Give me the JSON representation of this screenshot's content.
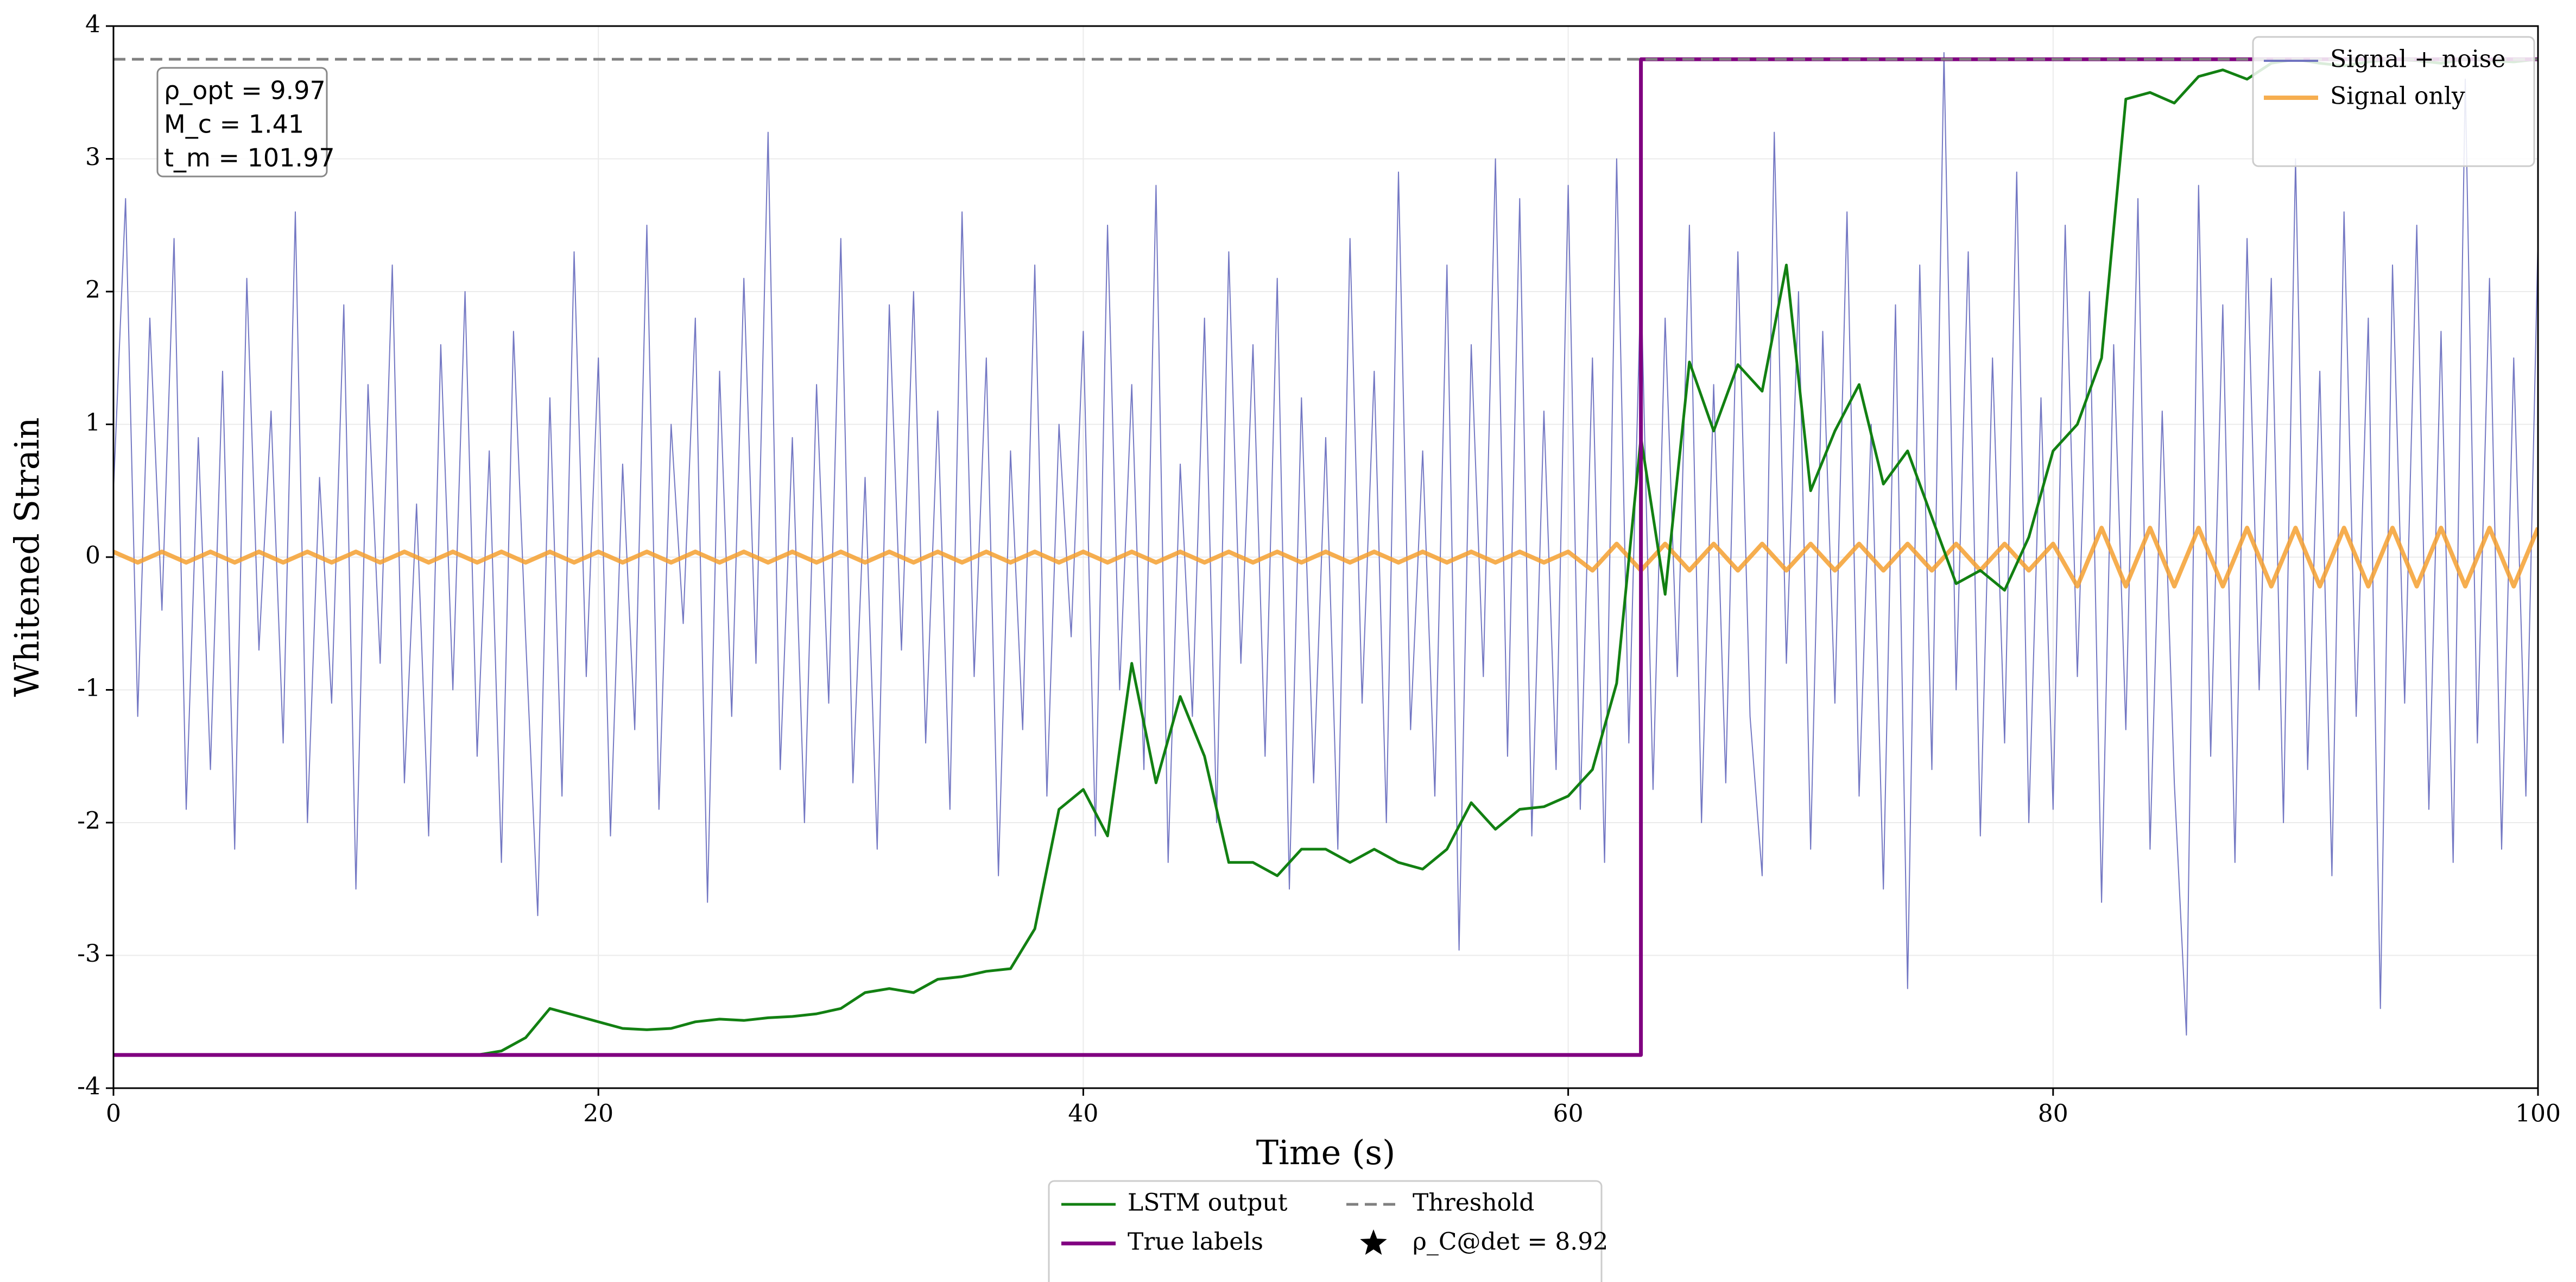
{
  "chart_data": {
    "type": "line",
    "xlabel": "Time (s)",
    "ylabel": "Whitened Strain",
    "xlim": [
      0,
      100
    ],
    "ylim": [
      -4,
      4
    ],
    "xticks": [
      0,
      20,
      40,
      60,
      80,
      100
    ],
    "yticks": [
      -4,
      -3,
      -2,
      -1,
      0,
      1,
      2,
      3,
      4
    ],
    "grid": true,
    "annotations": [
      "ρ_opt = 9.97",
      "M_c = 1.41",
      "t_m = 101.97"
    ],
    "marker_legend": {
      "label": "ρ_C@det = 8.92",
      "marker": "star",
      "color": "#000000",
      "legend": "below"
    },
    "series": [
      {
        "name": "Signal + noise",
        "color": "#5b5fb8",
        "width": 2,
        "opacity": 0.85,
        "legend": "upper right",
        "x": [
          0,
          0.5,
          1,
          1.5,
          2,
          2.5,
          3,
          3.5,
          4,
          4.5,
          5,
          5.5,
          6,
          6.5,
          7,
          7.5,
          8,
          8.5,
          9,
          9.5,
          10,
          10.5,
          11,
          11.5,
          12,
          12.5,
          13,
          13.5,
          14,
          14.5,
          15,
          15.5,
          16,
          16.5,
          17,
          17.5,
          18,
          18.5,
          19,
          19.5,
          20,
          20.5,
          21,
          21.5,
          22,
          22.5,
          23,
          23.5,
          24,
          24.5,
          25,
          25.5,
          26,
          26.5,
          27,
          27.5,
          28,
          28.5,
          29,
          29.5,
          30,
          30.5,
          31,
          31.5,
          32,
          32.5,
          33,
          33.5,
          34,
          34.5,
          35,
          35.5,
          36,
          36.5,
          37,
          37.5,
          38,
          38.5,
          39,
          39.5,
          40,
          40.5,
          41,
          41.5,
          42,
          42.5,
          43,
          43.5,
          44,
          44.5,
          45,
          45.5,
          46,
          46.5,
          47,
          47.5,
          48,
          48.5,
          49,
          49.5,
          50,
          50.5,
          51,
          51.5,
          52,
          52.5,
          53,
          53.5,
          54,
          54.5,
          55,
          55.5,
          56,
          56.5,
          57,
          57.5,
          58,
          58.5,
          59,
          59.5,
          60,
          60.5,
          61,
          61.5,
          62,
          62.5,
          63,
          63.5,
          64,
          64.5,
          65,
          65.5,
          66,
          66.5,
          67,
          67.5,
          68,
          68.5,
          69,
          69.5,
          70,
          70.5,
          71,
          71.5,
          72,
          72.5,
          73,
          73.5,
          74,
          74.5,
          75,
          75.5,
          76,
          76.5,
          77,
          77.5,
          78,
          78.5,
          79,
          79.5,
          80,
          80.5,
          81,
          81.5,
          82,
          82.5,
          83,
          83.5,
          84,
          84.5,
          85,
          85.5,
          86,
          86.5,
          87,
          87.5,
          88,
          88.5,
          89,
          89.5,
          90,
          90.5,
          91,
          91.5,
          92,
          92.5,
          93,
          93.5,
          94,
          94.5,
          95,
          95.5,
          96,
          96.5,
          97,
          97.5,
          98,
          98.5,
          99,
          99.5,
          100
        ],
        "values": [
          0.5,
          2.7,
          -1.2,
          1.8,
          -0.4,
          2.4,
          -1.9,
          0.9,
          -1.6,
          1.4,
          -2.2,
          2.1,
          -0.7,
          1.1,
          -1.4,
          2.6,
          -2.0,
          0.6,
          -1.1,
          1.9,
          -2.5,
          1.3,
          -0.8,
          2.2,
          -1.7,
          0.4,
          -2.1,
          1.6,
          -1.0,
          2.0,
          -1.5,
          0.8,
          -2.3,
          1.7,
          -0.6,
          -2.7,
          1.2,
          -1.8,
          2.3,
          -0.9,
          1.5,
          -2.1,
          0.7,
          -1.3,
          2.5,
          -1.9,
          1.0,
          -0.5,
          1.8,
          -2.6,
          1.4,
          -1.2,
          2.1,
          -0.8,
          3.2,
          -1.6,
          0.9,
          -2.0,
          1.3,
          -1.1,
          2.4,
          -1.7,
          0.6,
          -2.2,
          1.9,
          -0.7,
          2.0,
          -1.4,
          1.1,
          -1.9,
          2.6,
          -0.9,
          1.5,
          -2.4,
          0.8,
          -1.3,
          2.2,
          -1.8,
          1.0,
          -0.6,
          1.7,
          -2.1,
          2.5,
          -1.0,
          1.3,
          -1.6,
          2.8,
          -2.3,
          0.7,
          -1.2,
          1.8,
          -2.0,
          2.3,
          -0.8,
          1.6,
          -1.5,
          2.1,
          -2.5,
          1.2,
          -1.7,
          0.9,
          -2.2,
          2.4,
          -1.1,
          1.4,
          -2.0,
          2.9,
          -1.3,
          0.8,
          -1.8,
          2.2,
          -2.96,
          1.6,
          -0.9,
          3.0,
          -1.5,
          2.7,
          -2.1,
          1.1,
          -1.6,
          2.8,
          -1.9,
          1.5,
          -2.3,
          3.0,
          -1.4,
          2.1,
          -1.75,
          1.8,
          -0.9,
          2.5,
          -2.0,
          1.3,
          -1.7,
          2.3,
          -1.2,
          -2.4,
          3.2,
          -0.8,
          2.0,
          -2.2,
          1.7,
          -1.1,
          2.6,
          -1.8,
          1.0,
          -2.5,
          1.9,
          -3.25,
          2.2,
          -1.6,
          3.8,
          -1.0,
          2.3,
          -2.1,
          1.5,
          -1.4,
          2.9,
          -2.0,
          1.2,
          -1.9,
          2.5,
          -0.9,
          2.0,
          -2.6,
          1.6,
          -1.3,
          2.7,
          -2.2,
          1.1,
          -1.7,
          -3.6,
          2.8,
          -1.5,
          1.9,
          -2.3,
          2.4,
          -1.0,
          2.1,
          -2.0,
          3.0,
          -1.6,
          1.4,
          -2.4,
          2.6,
          -1.2,
          1.8,
          -3.4,
          2.2,
          -1.1,
          2.5,
          -1.9,
          1.7,
          -2.3,
          3.6,
          -1.4,
          2.1,
          -2.2,
          1.5,
          -1.8,
          2.4
        ]
      },
      {
        "name": "Signal only",
        "color": "#f5a030",
        "width": 8,
        "opacity": 0.85,
        "legend": "upper right",
        "x": [
          0,
          1,
          2,
          3,
          4,
          5,
          6,
          7,
          8,
          9,
          10,
          11,
          12,
          13,
          14,
          15,
          16,
          17,
          18,
          19,
          20,
          21,
          22,
          23,
          24,
          25,
          26,
          27,
          28,
          29,
          30,
          31,
          32,
          33,
          34,
          35,
          36,
          37,
          38,
          39,
          40,
          41,
          42,
          43,
          44,
          45,
          46,
          47,
          48,
          49,
          50,
          51,
          52,
          53,
          54,
          55,
          56,
          57,
          58,
          59,
          60,
          61,
          62,
          63,
          64,
          65,
          66,
          67,
          68,
          69,
          70,
          71,
          72,
          73,
          74,
          75,
          76,
          77,
          78,
          79,
          80,
          81,
          82,
          83,
          84,
          85,
          86,
          87,
          88,
          89,
          90,
          91,
          92,
          93,
          94,
          95,
          96,
          97,
          98,
          99,
          100
        ],
        "values": [
          0.04,
          -0.04,
          0.04,
          -0.04,
          0.04,
          -0.04,
          0.04,
          -0.04,
          0.04,
          -0.04,
          0.04,
          -0.04,
          0.04,
          -0.04,
          0.04,
          -0.04,
          0.04,
          -0.04,
          0.04,
          -0.04,
          0.04,
          -0.04,
          0.04,
          -0.04,
          0.04,
          -0.04,
          0.04,
          -0.04,
          0.04,
          -0.04,
          0.04,
          -0.04,
          0.04,
          -0.04,
          0.04,
          -0.04,
          0.04,
          -0.04,
          0.04,
          -0.04,
          0.04,
          -0.04,
          0.04,
          -0.04,
          0.04,
          -0.04,
          0.04,
          -0.04,
          0.04,
          -0.04,
          0.04,
          -0.04,
          0.04,
          -0.04,
          0.04,
          -0.04,
          0.04,
          -0.04,
          0.04,
          -0.04,
          0.04,
          -0.1,
          0.1,
          -0.1,
          0.1,
          -0.1,
          0.1,
          -0.1,
          0.1,
          -0.1,
          0.1,
          -0.1,
          0.1,
          -0.1,
          0.1,
          -0.1,
          0.1,
          -0.1,
          0.1,
          -0.1,
          0.1,
          -0.22,
          0.22,
          -0.22,
          0.22,
          -0.22,
          0.22,
          -0.22,
          0.22,
          -0.22,
          0.22,
          -0.22,
          0.22,
          -0.22,
          0.22,
          -0.22,
          0.22,
          -0.22,
          0.22,
          -0.22,
          0.22
        ]
      },
      {
        "name": "LSTM output",
        "color": "#128012",
        "width": 5,
        "opacity": 1,
        "legend": "below",
        "x": [
          0,
          1,
          2,
          3,
          4,
          5,
          6,
          7,
          8,
          9,
          10,
          11,
          12,
          13,
          14,
          15,
          16,
          17,
          18,
          19,
          20,
          21,
          22,
          23,
          24,
          25,
          26,
          27,
          28,
          29,
          30,
          31,
          32,
          33,
          34,
          35,
          36,
          37,
          38,
          39,
          40,
          41,
          42,
          43,
          44,
          45,
          46,
          47,
          48,
          49,
          50,
          51,
          52,
          53,
          54,
          55,
          56,
          57,
          58,
          59,
          60,
          61,
          62,
          63,
          64,
          65,
          66,
          67,
          68,
          69,
          70,
          71,
          72,
          73,
          74,
          75,
          76,
          77,
          78,
          79,
          80,
          81,
          82,
          83,
          84,
          85,
          86,
          87,
          88,
          89,
          90,
          91,
          92,
          93,
          94,
          95,
          96,
          97,
          98,
          99,
          100
        ],
        "values": [
          -3.75,
          -3.75,
          -3.75,
          -3.75,
          -3.75,
          -3.75,
          -3.75,
          -3.75,
          -3.75,
          -3.75,
          -3.75,
          -3.75,
          -3.75,
          -3.75,
          -3.75,
          -3.75,
          -3.72,
          -3.62,
          -3.4,
          -3.45,
          -3.5,
          -3.55,
          -3.56,
          -3.55,
          -3.5,
          -3.48,
          -3.49,
          -3.47,
          -3.46,
          -3.44,
          -3.4,
          -3.28,
          -3.25,
          -3.28,
          -3.18,
          -3.16,
          -3.12,
          -3.1,
          -2.8,
          -1.9,
          -1.75,
          -2.1,
          -0.8,
          -1.7,
          -1.05,
          -1.5,
          -2.3,
          -2.3,
          -2.4,
          -2.2,
          -2.2,
          -2.3,
          -2.2,
          -2.3,
          -2.35,
          -2.2,
          -1.85,
          -2.05,
          -1.9,
          -1.88,
          -1.8,
          -1.6,
          -0.95,
          0.9,
          -0.28,
          1.47,
          0.95,
          1.45,
          1.25,
          2.2,
          0.5,
          0.95,
          1.3,
          0.55,
          0.8,
          0.3,
          -0.2,
          -0.1,
          -0.25,
          0.15,
          0.8,
          1.0,
          1.5,
          3.45,
          3.5,
          3.42,
          3.62,
          3.67,
          3.6,
          3.72,
          3.75,
          3.72,
          3.7,
          3.73,
          3.75,
          3.74,
          3.72,
          3.75,
          3.74,
          3.73,
          3.75
        ]
      },
      {
        "name": "True labels",
        "color": "#800080",
        "width": 7,
        "opacity": 1,
        "legend": "below",
        "x": [
          0,
          63,
          63,
          100
        ],
        "values": [
          -3.75,
          -3.75,
          3.75,
          3.75
        ]
      },
      {
        "name": "Threshold",
        "color": "#808080",
        "width": 5,
        "opacity": 1,
        "dash": "dashed",
        "legend": "below",
        "x": [
          0,
          100
        ],
        "values": [
          3.75,
          3.75
        ]
      }
    ]
  }
}
